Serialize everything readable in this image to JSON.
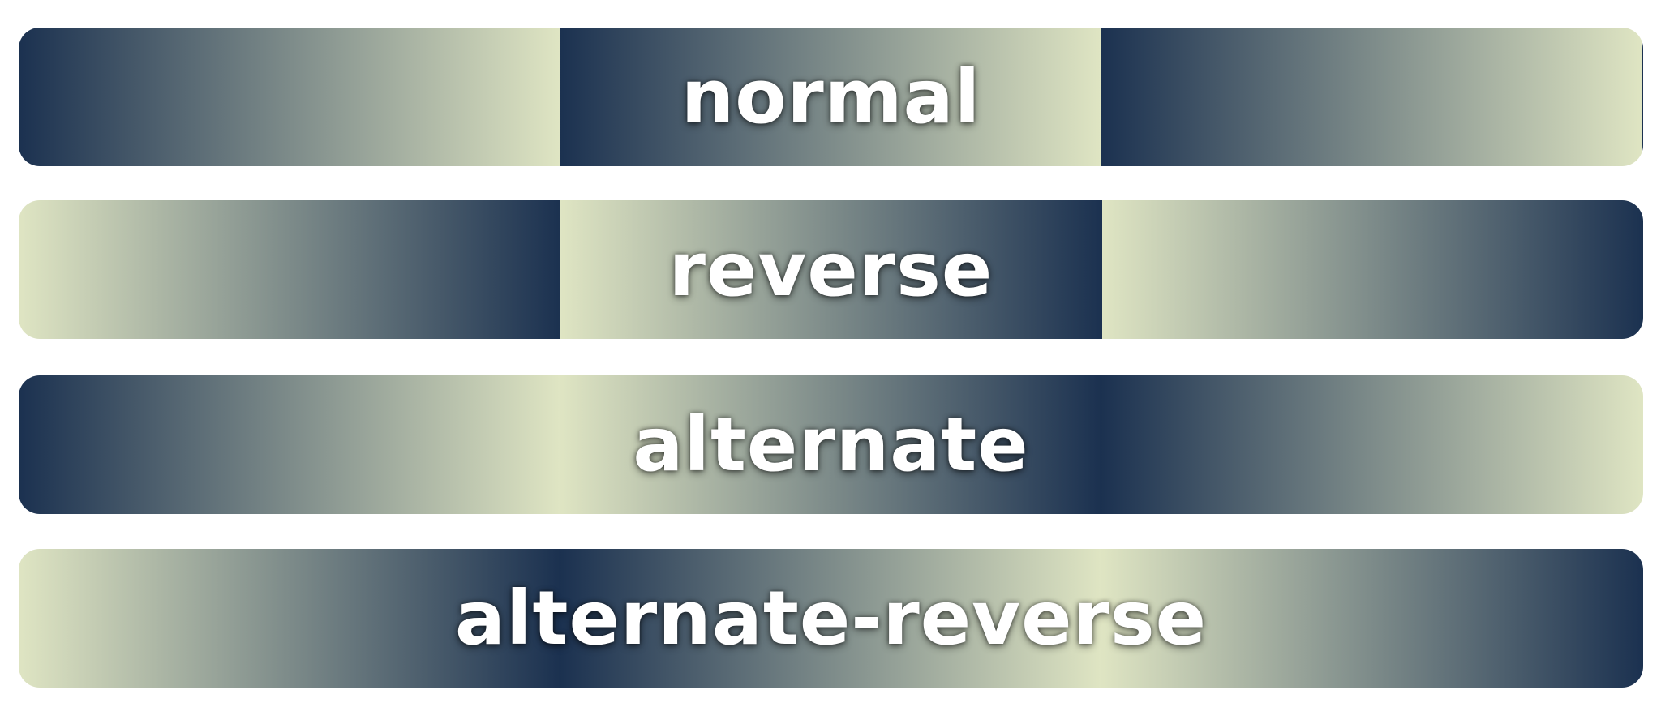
{
  "bands": [
    {
      "label": "normal"
    },
    {
      "label": "reverse"
    },
    {
      "label": "alternate"
    },
    {
      "label": "alternate-reverse"
    }
  ],
  "colors": {
    "dark": "#1b3150",
    "light": "#dfe5c3",
    "text": "#ffffff",
    "background": "#ffffff"
  }
}
